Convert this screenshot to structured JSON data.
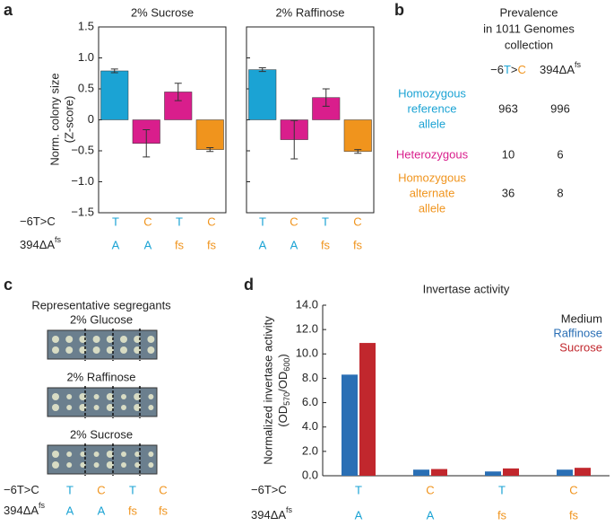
{
  "panel_labels": [
    "a",
    "b",
    "c",
    "d"
  ],
  "chart_data": [
    {
      "type": "bar",
      "title": "2% Sucrose",
      "ylabel": [
        "Norm. colony size",
        "(Z-score)"
      ],
      "categories": [
        "T/A",
        "C/A",
        "T/fs",
        "C/fs"
      ],
      "values": [
        0.79,
        -0.38,
        0.45,
        -0.48
      ],
      "errors": [
        0.03,
        0.22,
        0.14,
        0.03
      ],
      "colors": [
        "#1ba3d4",
        "#d91e8c",
        "#d91e8c",
        "#f0941d"
      ],
      "ylim": [
        -1.5,
        1.5
      ],
      "yticks": [
        {
          "value": -1.5,
          "label": "−1.5"
        },
        {
          "value": -1,
          "label": "−1.0"
        },
        {
          "value": -0.5,
          "label": "−0.5"
        },
        0,
        0.5,
        {
          "value": 1,
          "label": "1.0"
        },
        1.5
      ],
      "ytick_labels": true
    },
    {
      "type": "bar",
      "title": "2% Raffinose",
      "categories": [
        "T/A",
        "C/A",
        "T/fs",
        "C/fs"
      ],
      "values": [
        0.81,
        -0.32,
        0.36,
        -0.51
      ],
      "errors": [
        0.03,
        0.31,
        0.14,
        0.03
      ],
      "colors": [
        "#1ba3d4",
        "#d91e8c",
        "#d91e8c",
        "#f0941d"
      ],
      "ylim": [
        -1.5,
        1.5
      ],
      "yticks": [
        -1.5,
        -1,
        -0.5,
        0,
        0.5,
        1,
        1.5
      ],
      "ytick_labels": false
    },
    {
      "type": "grouped_bar",
      "title": "Invertase activity",
      "ylabel": [
        "Normalized invertase activity",
        [
          "(OD",
          "570",
          "/OD",
          "600",
          ")"
        ]
      ],
      "categories": [
        "T/A",
        "C/A",
        "T/fs",
        "C/fs"
      ],
      "series": [
        {
          "name": "Raffinose",
          "color": "#2a6fb5",
          "values": [
            8.3,
            0.5,
            0.35,
            0.5
          ]
        },
        {
          "name": "Sucrose",
          "color": "#c1272d",
          "values": [
            10.9,
            0.55,
            0.6,
            0.65
          ]
        }
      ],
      "legend_title": "Medium",
      "ylim": [
        0,
        14
      ],
      "yticks": [
        {
          "value": 0,
          "label": "0.0"
        },
        {
          "value": 2,
          "label": "2.0"
        },
        {
          "value": 4,
          "label": "4.0"
        },
        {
          "value": 6,
          "label": "6.0"
        },
        {
          "value": 8,
          "label": "8.0"
        },
        {
          "value": 10,
          "label": "10.0"
        },
        {
          "value": 12,
          "label": "12.0"
        },
        {
          "value": 14,
          "label": "14.0"
        }
      ],
      "ytick_labels": true
    }
  ],
  "genotype_rows": [
    {
      "label": "−6T>C",
      "alleles": [
        "T",
        "C",
        "T",
        "C"
      ],
      "colors": [
        "#1ba3d4",
        "#f0941d",
        "#1ba3d4",
        "#f0941d"
      ]
    },
    {
      "label": "394ΔA",
      "label_sup": "fs",
      "alleles": [
        "A",
        "A",
        "fs",
        "fs"
      ],
      "colors": [
        "#1ba3d4",
        "#1ba3d4",
        "#f0941d",
        "#f0941d"
      ]
    }
  ],
  "table": {
    "title": [
      "Prevalence",
      "in 1011 Genomes",
      "collection"
    ],
    "columns": [
      [
        "−6",
        "T",
        ">",
        "C"
      ],
      [
        "394ΔA",
        "fs"
      ]
    ],
    "rows": [
      {
        "label": [
          "Homozygous",
          "reference",
          "allele"
        ],
        "color": "#1ba3d4",
        "values": [
          "963",
          "996"
        ]
      },
      {
        "label": [
          "Heterozygous"
        ],
        "color": "#d91e8c",
        "values": [
          "10",
          "6"
        ]
      },
      {
        "label": [
          "Homozygous",
          "alternate",
          "allele"
        ],
        "color": "#f0941d",
        "values": [
          "36",
          "8"
        ]
      }
    ]
  },
  "segregants": {
    "title": "Representative segregants",
    "plates": [
      "2% Glucose",
      "2% Raffinose",
      "2% Sucrose"
    ]
  }
}
